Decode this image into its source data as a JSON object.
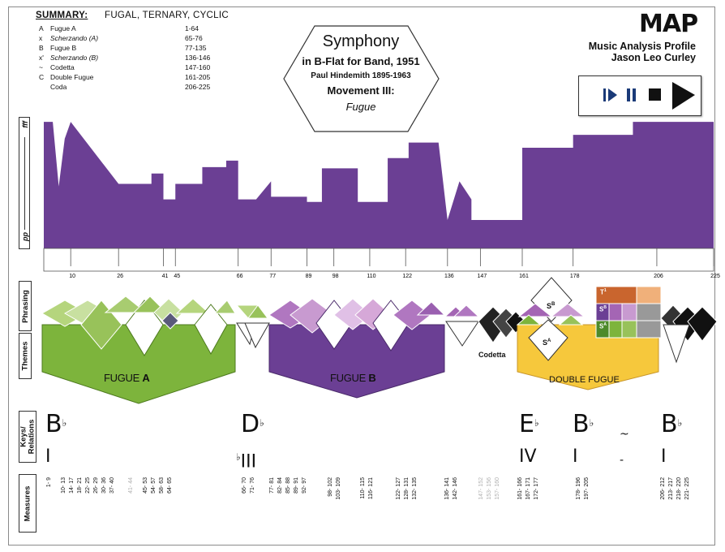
{
  "summary": {
    "title": "SUMMARY:",
    "subtitle": "FUGAL, TERNARY, CYCLIC",
    "rows": [
      {
        "key": "A",
        "label": "Fugue A",
        "measures": "1-64",
        "italic": false
      },
      {
        "key": "x",
        "label": "Scherzando (A)",
        "measures": "65-76",
        "italic": true
      },
      {
        "key": "B",
        "label": "Fugue B",
        "measures": "77-135",
        "italic": false
      },
      {
        "key": "x'",
        "label": "Scherzando (B)",
        "measures": "136-146",
        "italic": true
      },
      {
        "key": "~",
        "label": "Codetta",
        "measures": "147-160",
        "italic": false
      },
      {
        "key": "C",
        "label": "Double Fugue",
        "measures": "161-205",
        "italic": false
      },
      {
        "key": "",
        "label": "Coda",
        "measures": "206-225",
        "italic": false
      }
    ]
  },
  "work": {
    "title": "Symphony",
    "subtitle": "in B-Flat for Band, 1951",
    "composer": "Paul Hindemith  1895-1963",
    "movement": "Movement III:",
    "movement_name": "Fugue"
  },
  "map": {
    "title": "MAP",
    "line1": "Music Analysis Profile",
    "line2": "Jason Leo Curley"
  },
  "dynamics": {
    "top_label": "fff",
    "bottom_label": "pp",
    "color": "#6b3f94"
  },
  "chart_data": {
    "type": "area",
    "xlabel": "",
    "ylabel": "",
    "xlim": [
      1,
      225
    ],
    "ylim": [
      0,
      1
    ],
    "ticks": [
      10,
      26,
      41,
      45,
      66,
      77,
      89,
      98,
      110,
      122,
      136,
      147,
      161,
      178,
      206,
      225
    ],
    "x": [
      1,
      4,
      6,
      8,
      10,
      26,
      26,
      37,
      37,
      41,
      41,
      45,
      45,
      54,
      54,
      62,
      62,
      66,
      66,
      72,
      77,
      77,
      85,
      89,
      89,
      94,
      94,
      106,
      106,
      116,
      116,
      123,
      123,
      133,
      136,
      136,
      140,
      144,
      144,
      161,
      161,
      178,
      178,
      198,
      198,
      210,
      210,
      225
    ],
    "values": [
      0.98,
      0.98,
      0.48,
      0.85,
      0.98,
      0.5,
      0.5,
      0.5,
      0.58,
      0.58,
      0.38,
      0.38,
      0.5,
      0.5,
      0.63,
      0.63,
      0.68,
      0.68,
      0.38,
      0.38,
      0.52,
      0.4,
      0.4,
      0.4,
      0.36,
      0.36,
      0.62,
      0.62,
      0.36,
      0.36,
      0.7,
      0.7,
      0.82,
      0.82,
      0.22,
      0.22,
      0.52,
      0.38,
      0.22,
      0.22,
      0.78,
      0.78,
      0.88,
      0.88,
      0.98,
      0.98,
      0.98,
      0.98
    ]
  },
  "sections": {
    "phrasing_label": "Phrasing",
    "themes_label": "Themes",
    "fugue_a": {
      "prefix": "FUGUE ",
      "letter": "A",
      "color": "#7db43c"
    },
    "fugue_b": {
      "prefix": "FUGUE ",
      "letter": "B",
      "color": "#6b3f94"
    },
    "codetta": "Codetta",
    "double_fugue": {
      "label": "DOUBLE FUGUE",
      "color": "#f6c83c"
    },
    "s_labels": {
      "sb_top": "S",
      "sb_sup": "B",
      "sa_low": "S",
      "sa_sup": "A",
      "t1": "T",
      "t1_sup": "1",
      "sb_box": "S",
      "sb_box_sup": "B",
      "sa_box": "S",
      "sa_box_sup": "A"
    }
  },
  "keys": {
    "label": "Keys/ Relations",
    "items": [
      {
        "key": "B",
        "flat": "♭",
        "rel": "I",
        "rel_prefix": ""
      },
      {
        "key": "D",
        "flat": "♭",
        "rel": "III",
        "rel_prefix": "♭"
      },
      {
        "key": "E",
        "flat": "♭",
        "rel": "IV",
        "rel_prefix": ""
      },
      {
        "key": "B",
        "flat": "♭",
        "rel": "I",
        "rel_prefix": ""
      },
      {
        "key": "~",
        "flat": "",
        "rel": "-",
        "rel_prefix": ""
      },
      {
        "key": "B",
        "flat": "♭",
        "rel": "I",
        "rel_prefix": ""
      }
    ]
  },
  "measures": {
    "label": "Measures",
    "groups": [
      {
        "lines": [
          "1- 9"
        ],
        "gray": false
      },
      {
        "lines": [
          "10- 13",
          "14- 17",
          "18- 21",
          "22- 25",
          "26- 29",
          "30- 36",
          "37- 40"
        ],
        "gray": false
      },
      {
        "lines": [
          "41- 44"
        ],
        "gray": true
      },
      {
        "lines": [
          "45- 53",
          "54- 57",
          "58- 63",
          "64- 65"
        ],
        "gray": false
      },
      {
        "lines": [
          "66- 70",
          "71- 76"
        ],
        "gray": false
      },
      {
        "lines": [
          "77- 81",
          "82- 84",
          "85- 88",
          "89- 91",
          "92- 97"
        ],
        "gray": false
      },
      {
        "lines": [
          "98- 102",
          "103- 109"
        ],
        "gray": false
      },
      {
        "lines": [
          "110- 115",
          "116- 121"
        ],
        "gray": false
      },
      {
        "lines": [
          "122- 127",
          "128- 131",
          "132- 135"
        ],
        "gray": false
      },
      {
        "lines": [
          "136- 141",
          "142- 146"
        ],
        "gray": false
      },
      {
        "lines": [
          "147- 152",
          "153- 156",
          "157- 160"
        ],
        "gray": true
      },
      {
        "lines": [
          "161- 166",
          "167- 171",
          "172- 177"
        ],
        "gray": false
      },
      {
        "lines": [
          "178- 196",
          "197- 205"
        ],
        "gray": false
      },
      {
        "lines": [
          "206- 212",
          "213- 217",
          "218- 220",
          "221- 225"
        ],
        "gray": false
      }
    ]
  }
}
